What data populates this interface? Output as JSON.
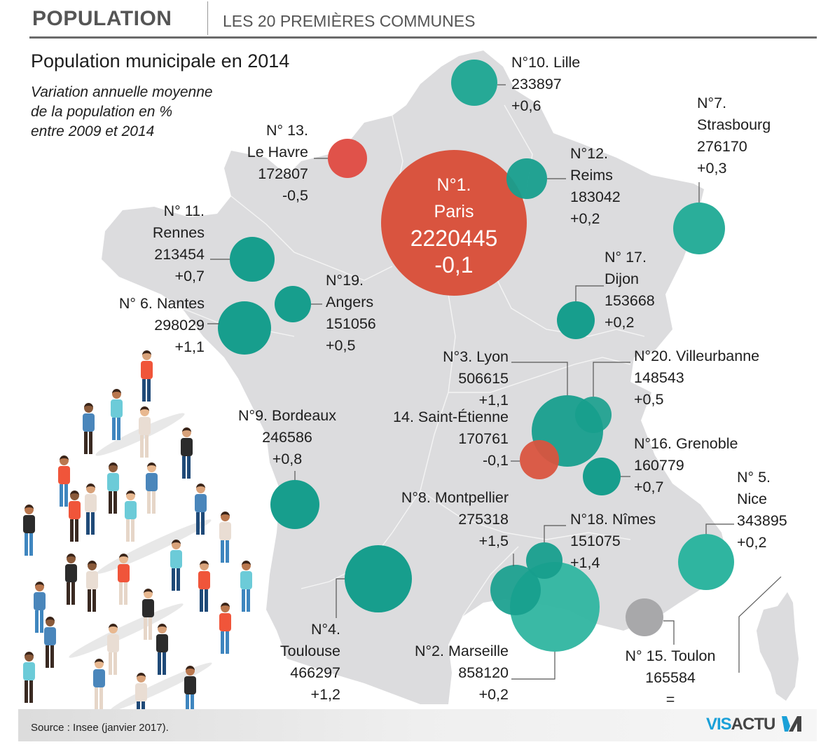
{
  "header": {
    "title": "POPULATION",
    "subtitle": "LES 20 PREMIÈRES COMMUNES"
  },
  "intro": {
    "title": "Population municipale en 2014",
    "subtitle_lines": [
      "Variation annuelle moyenne",
      "de la population en %",
      "entre 2009 et 2014"
    ]
  },
  "legend_colors": {
    "growth": "#179e8d",
    "decline": "#d9543f",
    "stable": "#a8a8aa",
    "land": "#dcdcde",
    "borders": "#f2f2f2"
  },
  "cities": [
    {
      "rank_label": "N°1.",
      "name": "Paris",
      "population": "2220445",
      "variation": "-0,1",
      "trend": "decline"
    },
    {
      "rank_label": "N°2.",
      "name": "Marseille",
      "population": "858120",
      "variation": "+0,2",
      "trend": "growth"
    },
    {
      "rank_label": "N°3.",
      "name": "Lyon",
      "population": "506615",
      "variation": "+1,1",
      "trend": "growth"
    },
    {
      "rank_label": "N°4.",
      "name": "Toulouse",
      "population": "466297",
      "variation": "+1,2",
      "trend": "growth"
    },
    {
      "rank_label": "N° 5.",
      "name": "Nice",
      "population": "343895",
      "variation": "+0,2",
      "trend": "growth"
    },
    {
      "rank_label": "N° 6.",
      "name": "Nantes",
      "population": "298029",
      "variation": "+1,1",
      "trend": "growth"
    },
    {
      "rank_label": "N°7.",
      "name": "Strasbourg",
      "population": "276170",
      "variation": "+0,3",
      "trend": "growth"
    },
    {
      "rank_label": "N°8.",
      "name": "Montpellier",
      "population": "275318",
      "variation": "+1,5",
      "trend": "growth"
    },
    {
      "rank_label": "N°9.",
      "name": "Bordeaux",
      "population": "246586",
      "variation": "+0,8",
      "trend": "growth"
    },
    {
      "rank_label": "N°10.",
      "name": "Lille",
      "population": "233897",
      "variation": "+0,6",
      "trend": "growth"
    },
    {
      "rank_label": "N° 11.",
      "name": "Rennes",
      "population": "213454",
      "variation": "+0,7",
      "trend": "growth"
    },
    {
      "rank_label": "N°12.",
      "name": "Reims",
      "population": "183042",
      "variation": "+0,2",
      "trend": "growth"
    },
    {
      "rank_label": "N° 13.",
      "name": "Le Havre",
      "population": "172807",
      "variation": "-0,5",
      "trend": "decline"
    },
    {
      "rank_label": "14.",
      "name": "Saint-Étienne",
      "population": "170761",
      "variation": "-0,1",
      "trend": "decline"
    },
    {
      "rank_label": "N° 15.",
      "name": "Toulon",
      "population": "165584",
      "variation": "=",
      "trend": "stable"
    },
    {
      "rank_label": "N°16.",
      "name": "Grenoble",
      "population": "160779",
      "variation": "+0,7",
      "trend": "growth"
    },
    {
      "rank_label": "N° 17.",
      "name": "Dijon",
      "population": "153668",
      "variation": "+0,2",
      "trend": "growth"
    },
    {
      "rank_label": "N°18.",
      "name": "Nîmes",
      "population": "151075",
      "variation": "+1,4",
      "trend": "growth"
    },
    {
      "rank_label": "N°19.",
      "name": "Angers",
      "population": "151056",
      "variation": "+0,5",
      "trend": "growth"
    },
    {
      "rank_label": "N°20.",
      "name": "Villeurbanne",
      "population": "148543",
      "variation": "+0,5",
      "trend": "growth"
    }
  ],
  "labels": {
    "paris": {
      "l1": "N°1.",
      "l2": "Paris",
      "l3": "2220445",
      "l4": "-0,1"
    },
    "lille": {
      "l1": "N°10. Lille",
      "l2": "233897",
      "l3": "+0,6"
    },
    "strasbourg": {
      "l1": "N°7.",
      "l2": "Strasbourg",
      "l3": "276170",
      "l4": "+0,3"
    },
    "reims": {
      "l1": "N°12.",
      "l2": "Reims",
      "l3": "183042",
      "l4": "+0,2"
    },
    "lehavre": {
      "l1": "N° 13.",
      "l2": "Le Havre",
      "l3": "172807",
      "l4": "-0,5"
    },
    "rennes": {
      "l1": "N° 11.",
      "l2": "Rennes",
      "l3": "213454",
      "l4": "+0,7"
    },
    "nantes": {
      "l1": "N° 6. Nantes",
      "l2": "298029",
      "l3": "+1,1"
    },
    "angers": {
      "l1": "N°19.",
      "l2": "Angers",
      "l3": "151056",
      "l4": "+0,5"
    },
    "dijon": {
      "l1": "N° 17.",
      "l2": "Dijon",
      "l3": "153668",
      "l4": "+0,2"
    },
    "lyon": {
      "l1": "N°3. Lyon",
      "l2": "506615",
      "l3": "+1,1"
    },
    "villeurbanne": {
      "l1": "N°20. Villeurbanne",
      "l2": "148543",
      "l3": "+0,5"
    },
    "saintetienne": {
      "l1": "14. Saint-Étienne",
      "l2": "170761",
      "l3": "-0,1"
    },
    "grenoble": {
      "l1": "N°16. Grenoble",
      "l2": "160779",
      "l3": "+0,7"
    },
    "bordeaux": {
      "l1": "N°9. Bordeaux",
      "l2": "246586",
      "l3": "+0,8"
    },
    "montpellier": {
      "l1": "N°8. Montpellier",
      "l2": "275318",
      "l3": "+1,5"
    },
    "nimes": {
      "l1": "N°18. Nîmes",
      "l2": "151075",
      "l3": "+1,4"
    },
    "nice": {
      "l1": "N° 5.",
      "l2": "Nice",
      "l3": "343895",
      "l4": "+0,2"
    },
    "toulouse": {
      "l1": "N°4.",
      "l2": "Toulouse",
      "l3": "466297",
      "l4": "+1,2"
    },
    "marseille": {
      "l1": "N°2. Marseille",
      "l2": "858120",
      "l3": "+0,2"
    },
    "toulon": {
      "l1": "N° 15. Toulon",
      "l2": "165584",
      "l3": "="
    }
  },
  "footer": {
    "source": "Source : Insee (janvier 2017).",
    "logo_part1": "VIS",
    "logo_part2": "ACTU"
  }
}
